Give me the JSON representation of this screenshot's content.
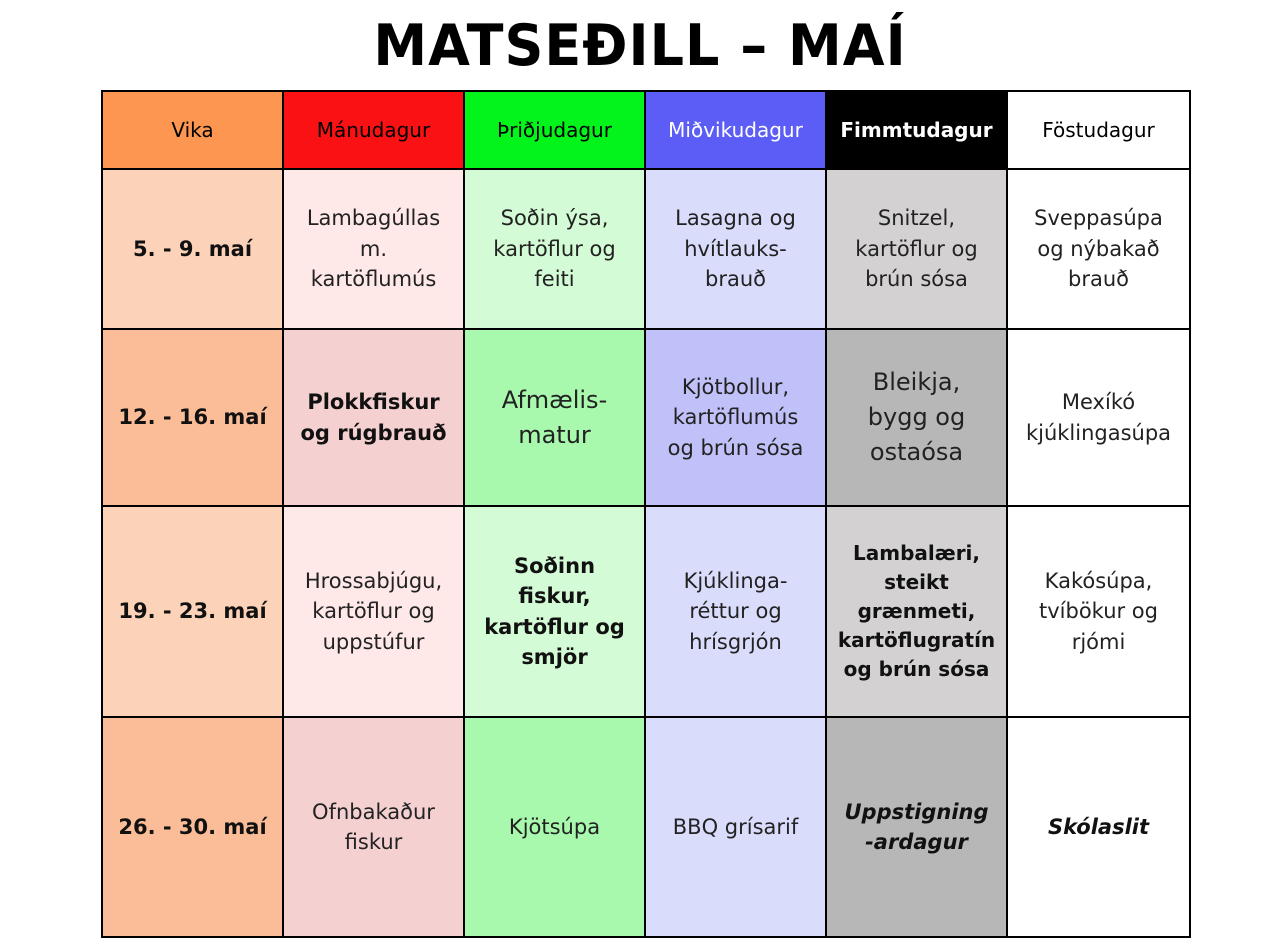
{
  "title": "MATSEÐILL – MAÍ",
  "headers": {
    "vika": "Vika",
    "mon": "Mánudagur",
    "tue": "Þriðjudagur",
    "wed": "Miðvikudagur",
    "thu": "Fimmtudagur",
    "fri": "Föstudagur"
  },
  "colors": {
    "vika": "#fd9650",
    "mon": "#f91113",
    "tue": "#02f41a",
    "wed": "#5b5df6",
    "thu": "#000000",
    "fri": "#ffffff"
  },
  "weeks": [
    {
      "label": "5. - 9. maí",
      "mon": "Lambagúllas m. kartöflumús",
      "tue": "Soðin ýsa, kartöflur og feiti",
      "wed": "Lasagna og hvítlauks-brauð",
      "thu": "Snitzel, kartöflur og brún sósa",
      "fri": "Sveppasúpa og nýbakað brauð"
    },
    {
      "label": "12. - 16. maí",
      "mon": "Plokkfiskur og rúgbrauð",
      "tue": "Afmælis-matur",
      "wed": "Kjötbollur, kartöflumús og brún sósa",
      "thu": "Bleikja, bygg og ostaósa",
      "fri": "Mexíkó kjúklingasúpa"
    },
    {
      "label": "19. - 23. maí",
      "mon": "Hrossabjúgu, kartöflur og uppstúfur",
      "tue": "Soðinn fiskur, kartöflur og smjör",
      "wed": "Kjúklinga-réttur og hrísgrjón",
      "thu": "Lambalæri, steikt grænmeti, kartöflugratín og brún sósa",
      "fri": "Kakósúpa, tvíbökur og rjómi"
    },
    {
      "label": "26. - 30. maí",
      "mon": "Ofnbakaður fiskur",
      "tue": "Kjötsúpa",
      "wed": "BBQ grísarif",
      "thu": "Uppstigning -ardagur",
      "fri": "Skólaslit"
    }
  ]
}
